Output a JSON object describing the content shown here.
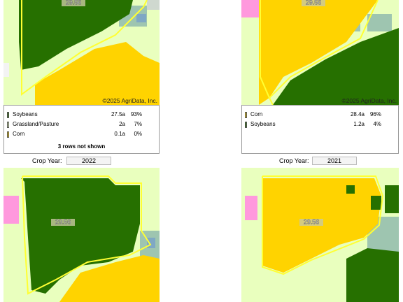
{
  "panels": [
    {
      "acres_label": "29.56",
      "copyright": "©2025 AgriData, Inc.",
      "legend": [
        {
          "crop": "Soybeans",
          "acres": "27.5a",
          "percent": "93%",
          "color": "#267000"
        },
        {
          "crop": "Grassland/Pasture",
          "acres": "2a",
          "percent": "7%",
          "color": "#e9ffbe"
        },
        {
          "crop": "Corn",
          "acres": "0.1a",
          "percent": "0%",
          "color": "#ffd300"
        }
      ],
      "note": "3 rows not shown"
    },
    {
      "acres_label": "29.56",
      "copyright": "©2025 AgriData, Inc.",
      "legend": [
        {
          "crop": "Corn",
          "acres": "28.4a",
          "percent": "96%",
          "color": "#ffd300"
        },
        {
          "crop": "Soybeans",
          "acres": "1.2a",
          "percent": "4%",
          "color": "#267000"
        }
      ]
    },
    {
      "crop_year_label": "Crop Year:",
      "crop_year": "2022",
      "acres_label": "29.56"
    },
    {
      "crop_year_label": "Crop Year:",
      "crop_year": "2021",
      "acres_label": "29.56"
    }
  ]
}
